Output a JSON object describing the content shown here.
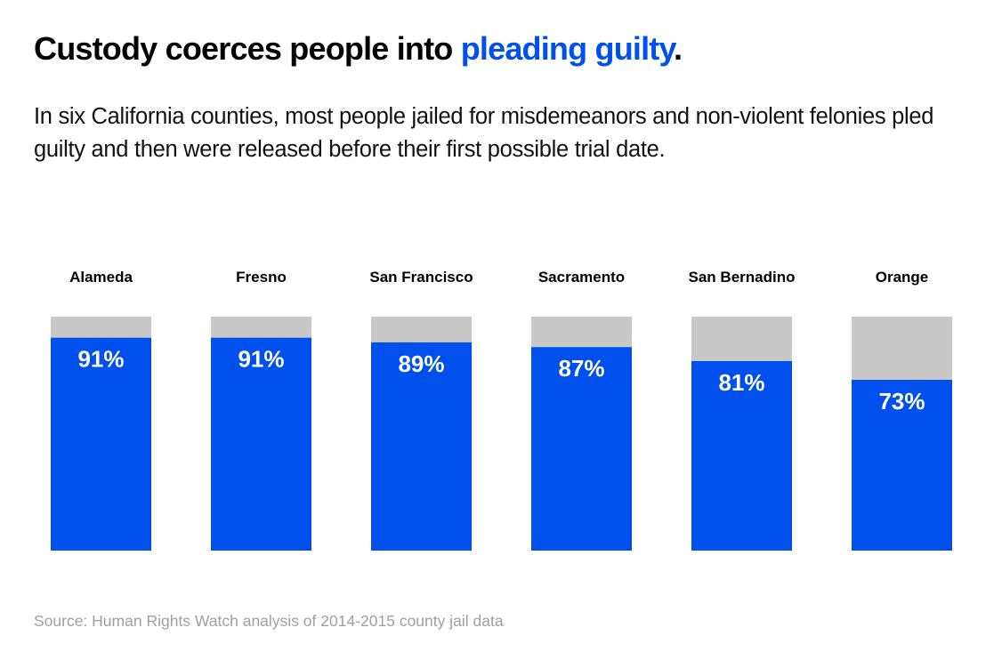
{
  "title": {
    "prefix": "Custody coerces people into ",
    "highlight": "pleading guilty",
    "suffix": "."
  },
  "subtitle": "In six California counties, most people jailed for misdemeanors and non-violent felonies pled guilty and then were released before their first possible trial date.",
  "source": "Source: Human Rights Watch analysis of 2014-2015 county jail data",
  "colors": {
    "primary": "#0050ee",
    "remainder": "#c8c8c8",
    "highlight": "#0050ee"
  },
  "chart_data": {
    "type": "bar",
    "stacked": true,
    "categories": [
      "Alameda",
      "Fresno",
      "San Francisco",
      "Sacramento",
      "San Bernadino",
      "Orange"
    ],
    "values": [
      91,
      91,
      89,
      87,
      81,
      73
    ],
    "labels": [
      "91%",
      "91%",
      "89%",
      "87%",
      "81%",
      "73%"
    ],
    "ylim": [
      0,
      100
    ],
    "grid": false,
    "axes": false
  }
}
